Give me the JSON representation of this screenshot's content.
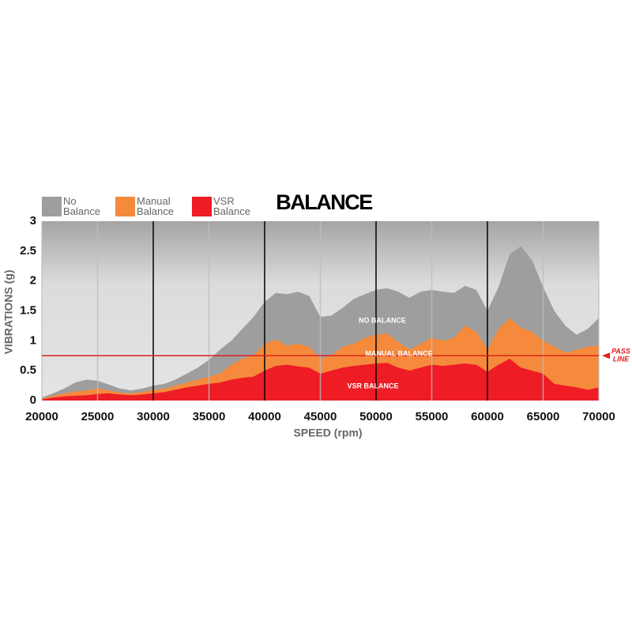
{
  "chart_data": {
    "type": "area",
    "title": "BALANCE",
    "x_label": "SPEED (rpm)",
    "y_label": "VIBRATIONS (g)",
    "x": [
      20000,
      21000,
      22000,
      23000,
      24000,
      25000,
      26000,
      27000,
      28000,
      29000,
      30000,
      31000,
      32000,
      33000,
      34000,
      35000,
      36000,
      37000,
      38000,
      39000,
      40000,
      41000,
      42000,
      43000,
      44000,
      45000,
      46000,
      47000,
      48000,
      49000,
      50000,
      51000,
      52000,
      53000,
      54000,
      55000,
      56000,
      57000,
      58000,
      59000,
      60000,
      61000,
      62000,
      63000,
      64000,
      65000,
      66000,
      67000,
      68000,
      69000,
      70000
    ],
    "series": [
      {
        "name": "No Balance",
        "color": "#9e9e9e",
        "label": "NO BALANCE",
        "values": [
          0.05,
          0.12,
          0.2,
          0.3,
          0.35,
          0.33,
          0.27,
          0.2,
          0.17,
          0.2,
          0.25,
          0.28,
          0.35,
          0.45,
          0.55,
          0.68,
          0.85,
          1.0,
          1.2,
          1.4,
          1.65,
          1.8,
          1.78,
          1.82,
          1.75,
          1.4,
          1.42,
          1.55,
          1.7,
          1.78,
          1.85,
          1.88,
          1.82,
          1.72,
          1.82,
          1.85,
          1.82,
          1.8,
          1.92,
          1.85,
          1.5,
          1.9,
          2.45,
          2.58,
          2.35,
          1.9,
          1.5,
          1.25,
          1.1,
          1.2,
          1.38
        ]
      },
      {
        "name": "Manual Balance",
        "color": "#f58a3c",
        "label": "MANUAL BALANCE",
        "values": [
          0.03,
          0.08,
          0.12,
          0.15,
          0.17,
          0.2,
          0.17,
          0.13,
          0.12,
          0.14,
          0.18,
          0.2,
          0.25,
          0.3,
          0.35,
          0.4,
          0.45,
          0.6,
          0.7,
          0.75,
          0.95,
          1.02,
          0.92,
          0.95,
          0.9,
          0.7,
          0.75,
          0.9,
          0.95,
          1.05,
          1.1,
          1.12,
          0.98,
          0.85,
          0.95,
          1.05,
          1.0,
          1.05,
          1.25,
          1.15,
          0.85,
          1.2,
          1.38,
          1.22,
          1.15,
          1.0,
          0.9,
          0.8,
          0.85,
          0.9,
          0.92
        ]
      },
      {
        "name": "VSR Balance",
        "color": "#ee1c25",
        "label": "VSR BALANCE",
        "values": [
          0.02,
          0.05,
          0.07,
          0.08,
          0.09,
          0.11,
          0.12,
          0.1,
          0.09,
          0.1,
          0.12,
          0.14,
          0.18,
          0.22,
          0.25,
          0.28,
          0.3,
          0.35,
          0.38,
          0.4,
          0.5,
          0.58,
          0.6,
          0.57,
          0.55,
          0.45,
          0.5,
          0.55,
          0.58,
          0.6,
          0.62,
          0.63,
          0.55,
          0.5,
          0.55,
          0.6,
          0.58,
          0.6,
          0.62,
          0.6,
          0.48,
          0.6,
          0.7,
          0.55,
          0.5,
          0.45,
          0.28,
          0.25,
          0.22,
          0.18,
          0.22
        ]
      }
    ],
    "pass_line": {
      "value": 0.75,
      "label": "PASS LINE",
      "color": "#e0201e"
    },
    "xlim": [
      20000,
      70000
    ],
    "xticks": [
      20000,
      25000,
      30000,
      35000,
      40000,
      45000,
      50000,
      55000,
      60000,
      65000,
      70000
    ],
    "ylim": [
      0,
      3
    ],
    "yticks": [
      0,
      0.5,
      1,
      1.5,
      2,
      2.5,
      3
    ],
    "grid": true
  }
}
